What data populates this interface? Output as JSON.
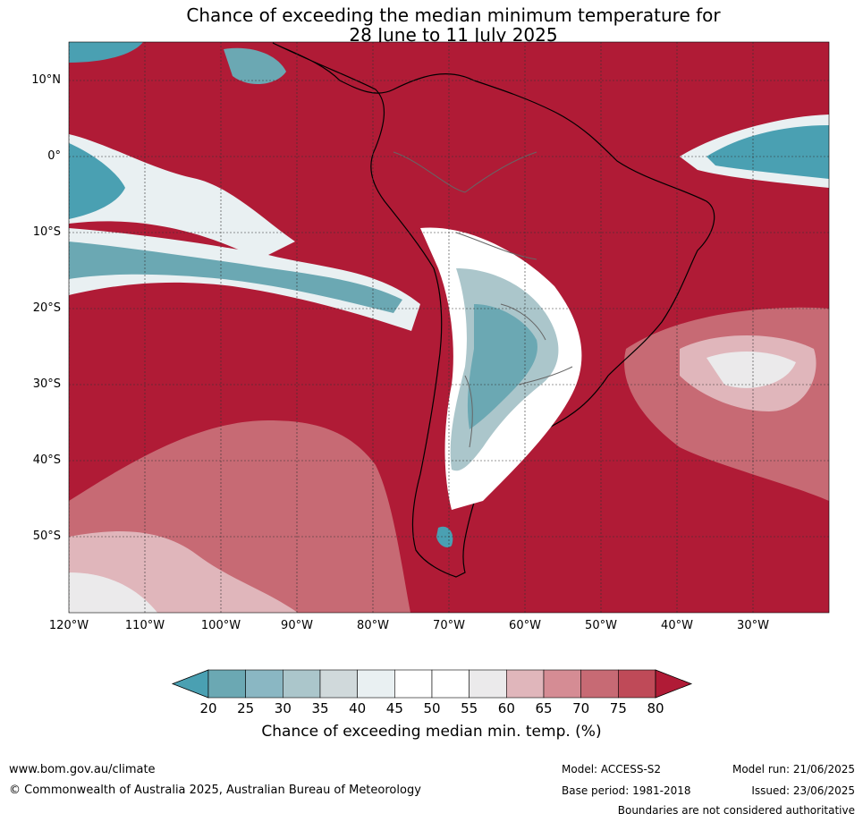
{
  "title": {
    "line1": "Chance of exceeding the median minimum temperature for",
    "line2": "28 June to 11 July 2025"
  },
  "map": {
    "lat_labels": [
      "10°N",
      "0°",
      "10°S",
      "20°S",
      "30°S",
      "40°S",
      "50°S"
    ],
    "lon_labels": [
      "120°W",
      "110°W",
      "100°W",
      "90°W",
      "80°W",
      "70°W",
      "60°W",
      "50°W",
      "40°W",
      "30°W"
    ],
    "lat_values": [
      10,
      0,
      -10,
      -20,
      -30,
      -40,
      -50
    ],
    "lon_values": [
      -120,
      -110,
      -100,
      -90,
      -80,
      -70,
      -60,
      -50,
      -40,
      -30
    ],
    "extent": {
      "lon_min": -120,
      "lon_max": -20,
      "lat_min": -60,
      "lat_max": 15
    },
    "background_color": "#b01b36"
  },
  "colorbar": {
    "ticks": [
      "20",
      "25",
      "30",
      "35",
      "40",
      "45",
      "50",
      "55",
      "60",
      "65",
      "70",
      "75",
      "80"
    ],
    "colors": [
      "#6ba8b3",
      "#8ab7c3",
      "#abc6cb",
      "#d0d9db",
      "#e9f0f2",
      "#ffffff",
      "#ffffff",
      "#ebeaeb",
      "#e0b6bb",
      "#d58c94",
      "#c76a74",
      "#bf4a58"
    ],
    "under_color": "#4aa0b2",
    "over_color": "#b01b36",
    "label": "Chance of exceeding median min. temp. (%)"
  },
  "footer": {
    "website": "www.bom.gov.au/climate",
    "copyright": "© Commonwealth of Australia 2025, Australian Bureau of Meteorology",
    "model": "Model: ACCESS-S2",
    "base_period": "Base period: 1981-2018",
    "model_run": "Model run: 21/06/2025",
    "issued": "Issued: 23/06/2025",
    "disclaimer": "Boundaries are not considered authoritative"
  }
}
